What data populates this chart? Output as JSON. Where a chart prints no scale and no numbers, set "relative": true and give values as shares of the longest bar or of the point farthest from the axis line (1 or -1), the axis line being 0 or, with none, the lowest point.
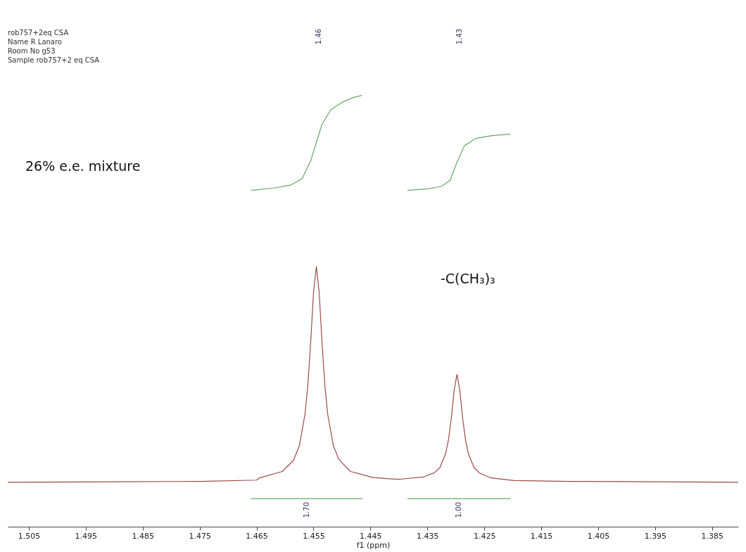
{
  "chart_data": {
    "type": "line",
    "relative": true,
    "xlabel": "f1 (ppm)",
    "xlim": [
      1.5087,
      1.3804
    ],
    "xticks": [
      1.505,
      1.495,
      1.485,
      1.475,
      1.465,
      1.455,
      1.445,
      1.435,
      1.425,
      1.415,
      1.405,
      1.395,
      1.385
    ],
    "grid": false,
    "marker": "none",
    "line_style": "solid",
    "series": [
      {
        "color": "#9a4a4a",
        "x": [
          1.5087,
          1.49,
          1.475,
          1.465,
          1.4645,
          1.4605,
          1.4585,
          1.4575,
          1.4565,
          1.456,
          1.4555,
          1.455,
          1.4545,
          1.454,
          1.4535,
          1.453,
          1.4525,
          1.4515,
          1.4505,
          1.4485,
          1.4445,
          1.4418,
          1.4398,
          1.4358,
          1.4338,
          1.4328,
          1.4318,
          1.4313,
          1.4308,
          1.4303,
          1.4298,
          1.4293,
          1.4288,
          1.4283,
          1.4278,
          1.4268,
          1.4258,
          1.4238,
          1.4198,
          1.41,
          1.395,
          1.3804
        ],
        "values": [
          0.103,
          0.104,
          0.105,
          0.108,
          0.113,
          0.128,
          0.154,
          0.187,
          0.26,
          0.327,
          0.426,
          0.543,
          0.603,
          0.543,
          0.426,
          0.327,
          0.26,
          0.187,
          0.155,
          0.128,
          0.114,
          0.111,
          0.11,
          0.115,
          0.125,
          0.137,
          0.169,
          0.201,
          0.251,
          0.316,
          0.353,
          0.316,
          0.251,
          0.201,
          0.169,
          0.137,
          0.124,
          0.113,
          0.107,
          0.105,
          0.104,
          0.103
        ]
      },
      {
        "color": "#6aa66a",
        "x": [
          1.466,
          1.462,
          1.459,
          1.457,
          1.4555,
          1.4545,
          1.4535,
          1.452,
          1.45,
          1.448,
          1.4465
        ],
        "values": [
          0.78,
          0.785,
          0.792,
          0.807,
          0.848,
          0.891,
          0.933,
          0.966,
          0.984,
          0.995,
          1.0
        ]
      },
      {
        "color": "#6aa66a",
        "x": [
          1.4385,
          1.435,
          1.4325,
          1.431,
          1.4298,
          1.4285,
          1.4265,
          1.4235,
          1.4204
        ],
        "values": [
          0.78,
          0.783,
          0.789,
          0.803,
          0.845,
          0.883,
          0.9,
          0.907,
          0.91
        ]
      },
      {
        "color": "#6aa66a",
        "x": [
          1.466,
          1.4464
        ],
        "values": [
          0.065,
          0.065
        ]
      },
      {
        "color": "#6aa66a",
        "x": [
          1.4385,
          1.4204
        ],
        "values": [
          0.065,
          0.065
        ]
      }
    ],
    "annotations": [
      "rob757+2eq CSA",
      "Name R Lanaro",
      "Room No g53",
      "Sample rob757+2 eq CSA",
      "26% e.e. mixture",
      "-C(CH₃)₃",
      "1.46",
      "1.43",
      {
        "text": "1.70",
        "x": 1.4562,
        "y": 0.065
      },
      {
        "text": "1.00",
        "x": 1.4295,
        "y": 0.065
      }
    ]
  }
}
